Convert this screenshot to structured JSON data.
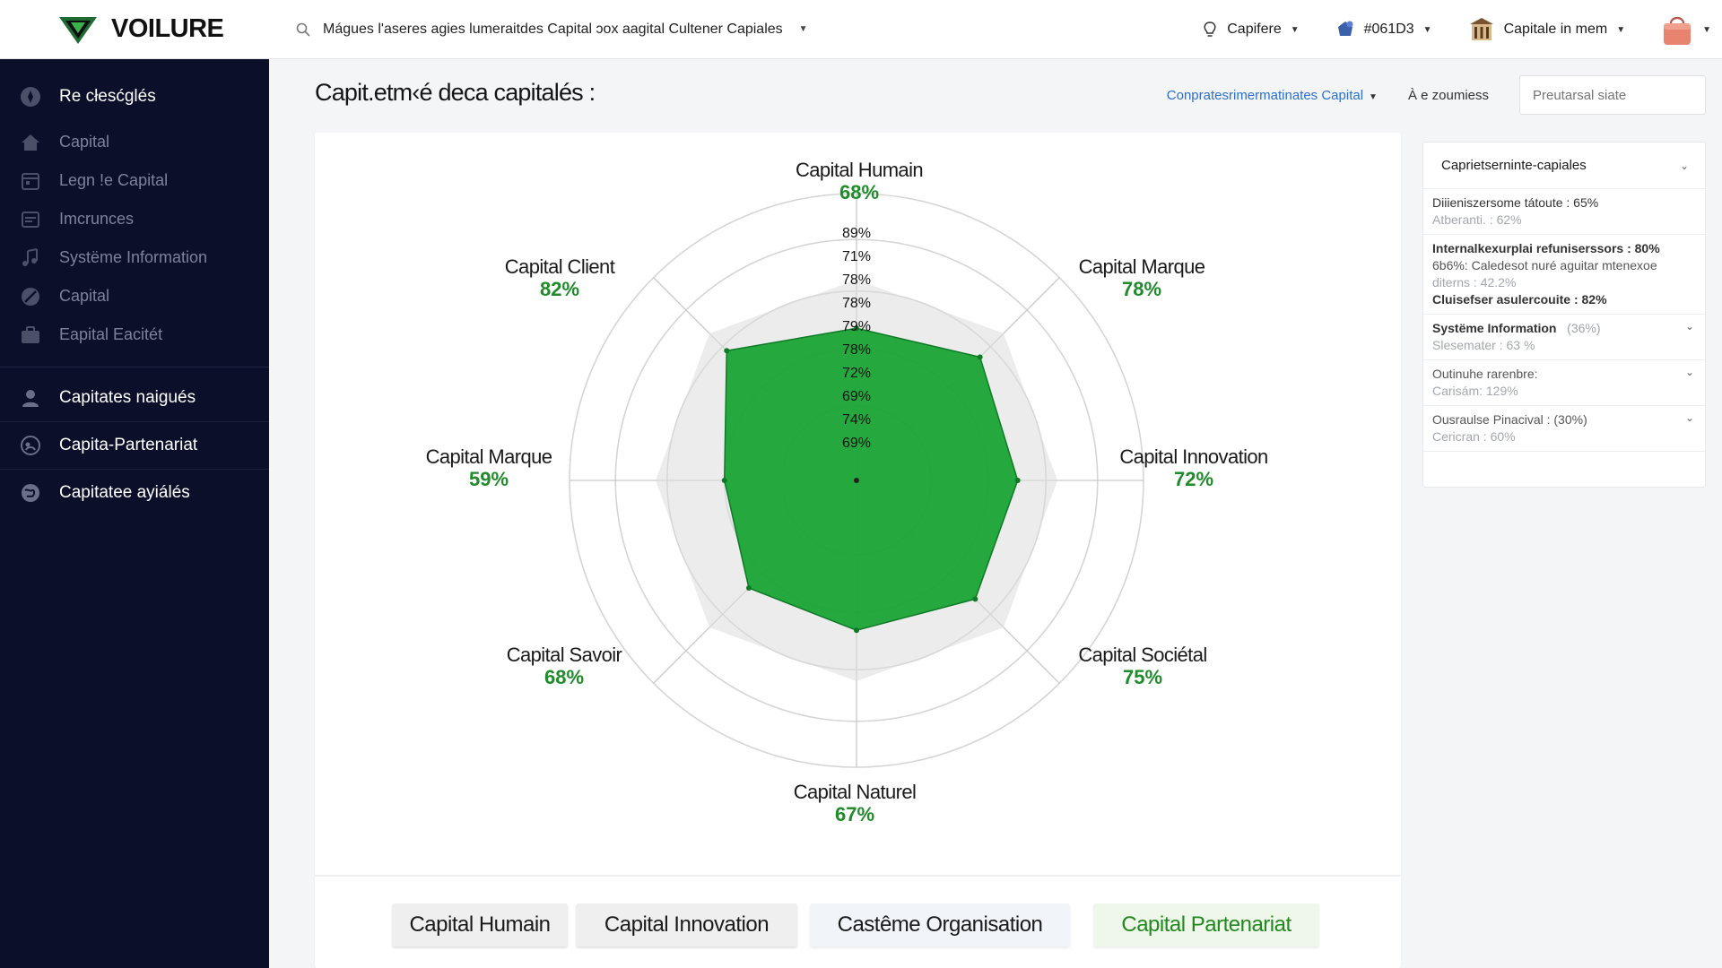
{
  "app": {
    "brand": "VOILURE"
  },
  "topbar": {
    "search_text": "Mágues l'aseres agies lumeraitdes  Capital ɔox aagital Cultener Capiales",
    "item1": "Capifere",
    "item2": "#061D3",
    "item3": "Capitale in mem"
  },
  "sidebar": {
    "top_item": "Re cłesćglés",
    "items": [
      "Capital",
      "Legn !e Capital",
      "Imcrunces",
      "Systëme Information",
      "Capital",
      "Eapital Eacitét"
    ],
    "sections": [
      "Capitates naigués",
      "Capita-Partenariat",
      "Capitatee ayiálés"
    ]
  },
  "main": {
    "title": "Capit.etm‹é deca capitalés :",
    "filter_link": "Conpratesrimermatinates Capital",
    "status_text": "À e zoumiess",
    "search_placeholder": "Preutarsal siate"
  },
  "chart_data": {
    "type": "radar",
    "axes": [
      {
        "name": "Capital Humain",
        "pct": "68%",
        "value": 68
      },
      {
        "name": "Capital Marque",
        "pct": "78%",
        "value": 78
      },
      {
        "name": "Capital Innovation",
        "pct": "72%",
        "value": 72
      },
      {
        "name": "Capital Sociétal",
        "pct": "75%",
        "value": 75
      },
      {
        "name": "Capital Naturel",
        "pct": "67%",
        "value": 67
      },
      {
        "name": "Capital Savoir",
        "pct": "68%",
        "value": 68
      },
      {
        "name": "Capital Marque",
        "pct": "59%",
        "value": 59
      },
      {
        "name": "Capital Client",
        "pct": "82%",
        "value": 82
      }
    ],
    "scale_labels": [
      "89%",
      "71%",
      "78%",
      "78%",
      "79%",
      "78%",
      "72%",
      "69%",
      "74%",
      "69%"
    ],
    "colors": {
      "fill": "#14a32f",
      "background_polygon": "#dcdcdc",
      "grid": "#d5d5d5"
    }
  },
  "tabs": [
    "Capital Humain",
    "Capital Innovation",
    "Castême Organisation",
    "Capital Partenariat"
  ],
  "panel": {
    "title": "Caprietserninte-capiales",
    "entries": [
      {
        "lines": [
          "Diiieniszersome tátoute : 65%",
          "Atberanti. : 62%"
        ]
      },
      {
        "lines": [
          "Internalkexurplai refuniserssors : 80%",
          "6b6%: Caledesot nuré aguitar mtenexoe",
          "diterns : 42.2%",
          "Cluisefser asulercouite : 82%"
        ]
      },
      {
        "title": "Systëme Information",
        "badge": "(36%)",
        "sub": "Slesemater : 63 %"
      },
      {
        "title": "Outinuhe rarenbre:",
        "sub": "Carisám: 129%"
      },
      {
        "title": "Ousraulse Pinacival : (30%)",
        "sub": "Cericran : 60%"
      }
    ]
  }
}
